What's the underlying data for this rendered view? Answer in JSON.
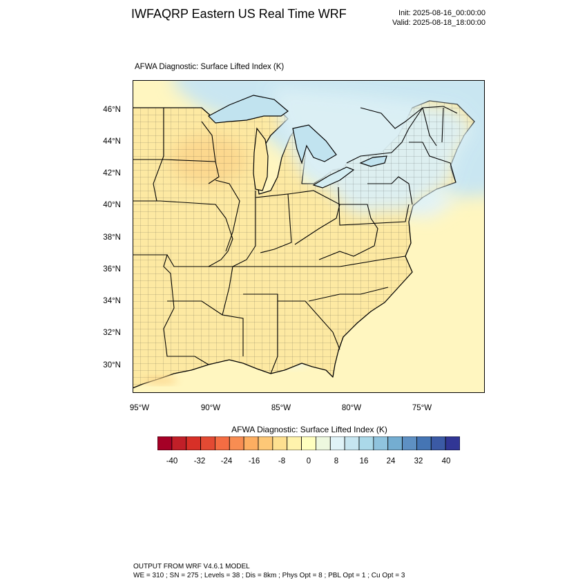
{
  "header": {
    "title": "IWFAQRP Eastern US Real Time WRF",
    "init": "Init: 2025-08-16_00:00:00",
    "valid": "Valid: 2025-08-18_18:00:00"
  },
  "plot": {
    "subtitle": "AFWA Diagnostic: Surface Lifted Index   (K)",
    "lat_labels": [
      "46°N",
      "44°N",
      "42°N",
      "40°N",
      "38°N",
      "36°N",
      "34°N",
      "32°N",
      "30°N"
    ],
    "lon_labels": [
      "95°W",
      "90°W",
      "85°W",
      "80°W",
      "75°W"
    ]
  },
  "colorbar": {
    "title": "AFWA Diagnostic: Surface Lifted Index  (K)",
    "labels": [
      "-40",
      "-32",
      "-24",
      "-16",
      "-8",
      "0",
      "8",
      "16",
      "24",
      "32",
      "40"
    ],
    "colors": [
      "#a50026",
      "#c11f28",
      "#d73027",
      "#e34a33",
      "#f46d43",
      "#f88d52",
      "#fdae61",
      "#fdc877",
      "#fee090",
      "#fff3ac",
      "#ffffbf",
      "#edf8df",
      "#e0f3f8",
      "#c6e5f0",
      "#abd9e9",
      "#8fc3dd",
      "#74add1",
      "#5e90c3",
      "#4575b4",
      "#3b5aa5",
      "#313695"
    ]
  },
  "map_colors": {
    "land_warm": "#fde9a2",
    "land_orange": "#fcd790",
    "ocean_yellow": "#fff6c0",
    "lake_blue": "#c1e3ef",
    "northeast_blue": "#d6eef6"
  },
  "footer": {
    "line1": "OUTPUT FROM WRF V4.6.1 MODEL",
    "line2": "WE = 310 ; SN = 275 ; Levels = 38 ; Dis = 8km ; Phys Opt = 8 ; PBL Opt = 1 ; Cu Opt = 3"
  }
}
